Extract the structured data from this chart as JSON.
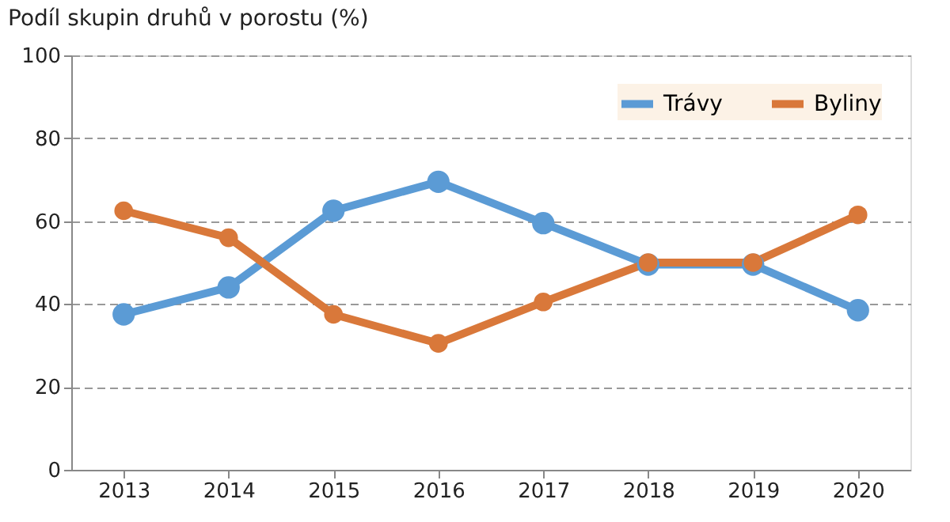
{
  "chart_data": {
    "type": "line",
    "ylabel": "Podíl skupin druhů v porostu (%)",
    "categories": [
      "2013",
      "2014",
      "2015",
      "2016",
      "2017",
      "2018",
      "2019",
      "2020"
    ],
    "series": [
      {
        "name": "Trávy",
        "color": "#5b9bd5",
        "values": [
          37.5,
          44,
          62.5,
          69.5,
          59.5,
          49.5,
          49.5,
          38.5
        ]
      },
      {
        "name": "Byliny",
        "color": "#d9783a",
        "values": [
          62.5,
          56,
          37.5,
          30.5,
          40.5,
          50,
          50,
          61.5
        ]
      }
    ],
    "ylim": [
      0,
      100
    ],
    "yticks": [
      0,
      20,
      40,
      60,
      80,
      100
    ],
    "grid": "y",
    "legend": "top right",
    "marker": "circle",
    "line_style": "solid"
  }
}
